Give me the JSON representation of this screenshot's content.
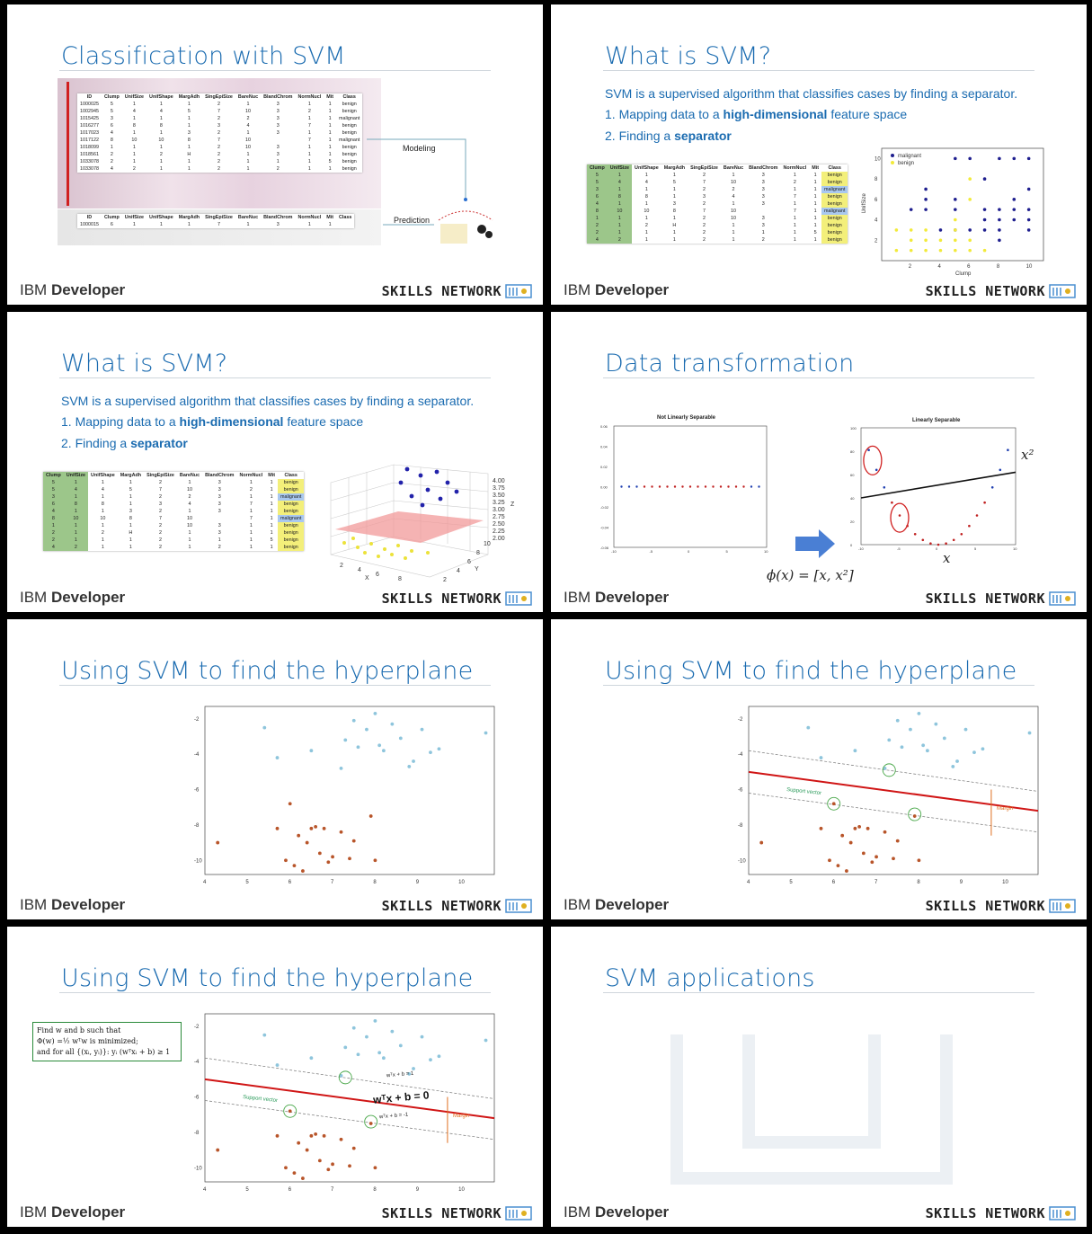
{
  "footer": {
    "brand_light": "IBM ",
    "brand_bold": "Developer",
    "network": "SKILLS NETWORK"
  },
  "slides": [
    {
      "title": "Classification with SVM",
      "modeling": "Modeling",
      "prediction": "Prediction"
    },
    {
      "title": "What is SVM?",
      "intro": "SVM is a supervised algorithm that classifies cases by finding a separator.",
      "point1_pre": "1.  Mapping data to a ",
      "point1_bold": "high-dimensional",
      "point1_post": " feature space",
      "point2_pre": "2.  Finding a ",
      "point2_bold": "separator"
    },
    {
      "title": "What is SVM?",
      "intro": "SVM is a supervised algorithm that classifies cases by finding a separator.",
      "point1_pre": "1.  Mapping data to a ",
      "point1_bold": "high-dimensional",
      "point1_post": " feature space",
      "point2_pre": "2.  Finding a ",
      "point2_bold": "separator"
    },
    {
      "title": "Data transformation",
      "left_chart_title": "Not Linearly Separable",
      "right_chart_title": "Linearly Separable",
      "phi": "ϕ(x) = [x, x²]",
      "x_label": "x",
      "x2_label": "x²"
    },
    {
      "title": "Using SVM to find the hyperplane"
    },
    {
      "title": "Using SVM to find the hyperplane",
      "support_vector": "Support vector",
      "margin": "Margin"
    },
    {
      "title": "Using SVM to find the hyperplane",
      "support_vector": "Support vector",
      "margin": "Margin",
      "eq_main": "wᵀx + b = 0",
      "eq_plus": "wᵀx + b = 1",
      "eq_minus": "wᵀx + b = -1",
      "box_line1": "Find w and b such that",
      "box_line2": "Φ(w) =½ wᵀw  is minimized;",
      "box_line3": "and for all {(xᵢ, yᵢ)}:  yᵢ (wᵀxᵢ + b) ≥ 1"
    },
    {
      "title": "SVM applications"
    }
  ],
  "table_full": {
    "headers": [
      "ID",
      "Clump",
      "UnifSize",
      "UnifShape",
      "MargAdh",
      "SingEpiSize",
      "BareNuc",
      "BlandChrom",
      "NormNucl",
      "Mit",
      "Class"
    ],
    "rows": [
      [
        "1000025",
        "5",
        "1",
        "1",
        "1",
        "2",
        "1",
        "3",
        "1",
        "1",
        "benign"
      ],
      [
        "1002945",
        "5",
        "4",
        "4",
        "5",
        "7",
        "10",
        "3",
        "2",
        "1",
        "benign"
      ],
      [
        "1015425",
        "3",
        "1",
        "1",
        "1",
        "2",
        "2",
        "3",
        "1",
        "1",
        "malignant"
      ],
      [
        "1016277",
        "6",
        "8",
        "8",
        "1",
        "3",
        "4",
        "3",
        "7",
        "1",
        "benign"
      ],
      [
        "1017023",
        "4",
        "1",
        "1",
        "3",
        "2",
        "1",
        "3",
        "1",
        "1",
        "benign"
      ],
      [
        "1017122",
        "8",
        "10",
        "10",
        "8",
        "7",
        "10",
        "",
        "7",
        "1",
        "malignant"
      ],
      [
        "1018099",
        "1",
        "1",
        "1",
        "1",
        "2",
        "10",
        "3",
        "1",
        "1",
        "benign"
      ],
      [
        "1018561",
        "2",
        "1",
        "2",
        "H",
        "2",
        "1",
        "3",
        "1",
        "1",
        "benign"
      ],
      [
        "1033078",
        "2",
        "1",
        "1",
        "1",
        "2",
        "1",
        "1",
        "1",
        "5",
        "benign"
      ],
      [
        "1033078",
        "4",
        "2",
        "1",
        "1",
        "2",
        "1",
        "2",
        "1",
        "1",
        "benign"
      ]
    ],
    "predict_row": [
      "1000015",
      "6",
      "1",
      "1",
      "1",
      "7",
      "1",
      "3",
      "1",
      "1",
      ""
    ]
  },
  "table_small": {
    "headers": [
      "Clump",
      "UnifSize",
      "UnifShape",
      "MargAdh",
      "SingEpiSize",
      "BareNuc",
      "BlandChrom",
      "NormNucl",
      "Mit",
      "Class"
    ],
    "rows": [
      [
        "5",
        "1",
        "1",
        "1",
        "2",
        "1",
        "3",
        "1",
        "1",
        "benign"
      ],
      [
        "5",
        "4",
        "4",
        "5",
        "7",
        "10",
        "3",
        "2",
        "1",
        "benign"
      ],
      [
        "3",
        "1",
        "1",
        "1",
        "2",
        "2",
        "3",
        "1",
        "1",
        "malignant"
      ],
      [
        "6",
        "8",
        "8",
        "1",
        "3",
        "4",
        "3",
        "7",
        "1",
        "benign"
      ],
      [
        "4",
        "1",
        "1",
        "3",
        "2",
        "1",
        "3",
        "1",
        "1",
        "benign"
      ],
      [
        "8",
        "10",
        "10",
        "8",
        "7",
        "10",
        "",
        "7",
        "1",
        "malignant"
      ],
      [
        "1",
        "1",
        "1",
        "1",
        "2",
        "10",
        "3",
        "1",
        "1",
        "benign"
      ],
      [
        "2",
        "1",
        "2",
        "H",
        "2",
        "1",
        "3",
        "1",
        "1",
        "benign"
      ],
      [
        "2",
        "1",
        "1",
        "1",
        "2",
        "1",
        "1",
        "1",
        "5",
        "benign"
      ],
      [
        "4",
        "2",
        "1",
        "1",
        "2",
        "1",
        "2",
        "1",
        "1",
        "benign"
      ]
    ]
  },
  "chart_data": [
    {
      "type": "scatter",
      "xlabel": "Clump",
      "ylabel": "UnifSize",
      "xlim": [
        0,
        11
      ],
      "ylim": [
        0,
        11
      ],
      "series": [
        {
          "name": "malignant",
          "color": "#1f1f8f",
          "points": [
            [
              5,
              10
            ],
            [
              6,
              10
            ],
            [
              8,
              10
            ],
            [
              9,
              10
            ],
            [
              10,
              10
            ],
            [
              7,
              8
            ],
            [
              3,
              7
            ],
            [
              10,
              7
            ],
            [
              3,
              6
            ],
            [
              5,
              6
            ],
            [
              9,
              6
            ],
            [
              2,
              5
            ],
            [
              3,
              5
            ],
            [
              5,
              5
            ],
            [
              7,
              5
            ],
            [
              8,
              5
            ],
            [
              9,
              5
            ],
            [
              10,
              5
            ],
            [
              7,
              4
            ],
            [
              8,
              4
            ],
            [
              10,
              4
            ],
            [
              9,
              4
            ],
            [
              4,
              3
            ],
            [
              7,
              3
            ],
            [
              8,
              3
            ],
            [
              10,
              3
            ],
            [
              5,
              3
            ],
            [
              6,
              3
            ],
            [
              8,
              2
            ]
          ]
        },
        {
          "name": "benign",
          "color": "#f2ea3a",
          "points": [
            [
              6,
              8
            ],
            [
              6,
              6
            ],
            [
              5,
              4
            ],
            [
              1,
              3
            ],
            [
              2,
              3
            ],
            [
              3,
              3
            ],
            [
              5,
              3
            ],
            [
              2,
              2
            ],
            [
              3,
              2
            ],
            [
              4,
              2
            ],
            [
              5,
              2
            ],
            [
              6,
              2
            ],
            [
              1,
              1
            ],
            [
              2,
              1
            ],
            [
              3,
              1
            ],
            [
              4,
              1
            ],
            [
              5,
              1
            ],
            [
              6,
              1
            ],
            [
              7,
              1
            ]
          ]
        }
      ]
    },
    {
      "type": "scatter",
      "title": "Not Linearly Separable",
      "xlim": [
        -10,
        10
      ],
      "ylim": [
        -0.06,
        0.06
      ],
      "x": [
        -9,
        -8,
        -7,
        -6,
        -5,
        -4,
        -3,
        -2,
        -1,
        0,
        1,
        2,
        3,
        4,
        5,
        6,
        7,
        8,
        9
      ],
      "y": 0,
      "class_outer": [
        -9,
        -8,
        -7,
        8,
        9
      ],
      "class_inner": [
        -6,
        -5,
        -4,
        -3,
        -2,
        -1,
        0,
        1,
        2,
        3,
        4,
        5,
        6,
        7
      ]
    },
    {
      "type": "scatter",
      "title": "Linearly Separable",
      "xlim": [
        -10,
        10
      ],
      "ylim": [
        0,
        100
      ],
      "x": [
        -9,
        -8,
        -7,
        -6,
        -5,
        -4,
        -3,
        -2,
        -1,
        0,
        1,
        2,
        3,
        4,
        5,
        6,
        7,
        8,
        9
      ]
    },
    {
      "type": "scatter",
      "xlim": [
        4,
        10.8
      ],
      "ylim": [
        -10.8,
        -1.3
      ],
      "series": [
        {
          "name": "class_a",
          "color": "#8ec5dc",
          "points": [
            [
              5.4,
              -2.5
            ],
            [
              5.7,
              -4.2
            ],
            [
              6.5,
              -3.8
            ],
            [
              7.2,
              -4.8
            ],
            [
              7.3,
              -3.2
            ],
            [
              7.5,
              -2.1
            ],
            [
              7.6,
              -3.6
            ],
            [
              7.8,
              -2.6
            ],
            [
              8.0,
              -1.7
            ],
            [
              8.1,
              -3.5
            ],
            [
              8.4,
              -2.3
            ],
            [
              8.6,
              -3.1
            ],
            [
              8.9,
              -4.4
            ],
            [
              9.1,
              -2.6
            ],
            [
              9.3,
              -3.9
            ],
            [
              9.5,
              -3.7
            ],
            [
              10.6,
              -2.8
            ],
            [
              8.2,
              -3.8
            ],
            [
              8.8,
              -4.7
            ]
          ]
        },
        {
          "name": "class_b",
          "color": "#b8552a",
          "points": [
            [
              4.3,
              -9.0
            ],
            [
              5.7,
              -8.2
            ],
            [
              6.0,
              -6.8
            ],
            [
              5.9,
              -10.0
            ],
            [
              6.2,
              -8.6
            ],
            [
              6.4,
              -9.0
            ],
            [
              6.5,
              -8.2
            ],
            [
              6.6,
              -8.1
            ],
            [
              6.8,
              -8.2
            ],
            [
              6.7,
              -9.6
            ],
            [
              7.0,
              -9.8
            ],
            [
              7.2,
              -8.4
            ],
            [
              7.5,
              -8.9
            ],
            [
              7.9,
              -7.5
            ],
            [
              8.0,
              -10.0
            ],
            [
              6.3,
              -10.6
            ],
            [
              6.9,
              -10.1
            ],
            [
              7.4,
              -9.9
            ],
            [
              6.1,
              -10.3
            ]
          ]
        }
      ]
    }
  ]
}
